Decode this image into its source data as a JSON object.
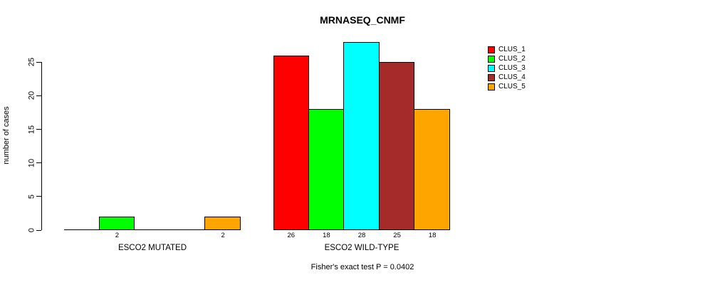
{
  "chart_data": {
    "type": "bar",
    "title": "MRNASEQ_CNMF",
    "ylabel": "number of cases",
    "xlabel": "",
    "ylim": [
      0,
      28
    ],
    "yticks": [
      0,
      5,
      10,
      15,
      20,
      25
    ],
    "grid": false,
    "legend_position": "top-right",
    "series_labels": [
      "CLUS_1",
      "CLUS_2",
      "CLUS_3",
      "CLUS_4",
      "CLUS_5"
    ],
    "colors": [
      "#FF0000",
      "#00FF00",
      "#00FFFF",
      "#A52A2A",
      "#FFA500"
    ],
    "groups": [
      {
        "label": "ESCO2 MUTATED",
        "values": [
          0,
          2,
          0,
          0,
          2
        ],
        "bar_labels": [
          "",
          "2",
          "",
          "",
          "2"
        ]
      },
      {
        "label": "ESCO2 WILD-TYPE",
        "values": [
          26,
          18,
          28,
          25,
          18
        ],
        "bar_labels": [
          "26",
          "18",
          "28",
          "25",
          "18"
        ]
      }
    ],
    "annotation": "Fisher's exact test P = 0.0402"
  }
}
